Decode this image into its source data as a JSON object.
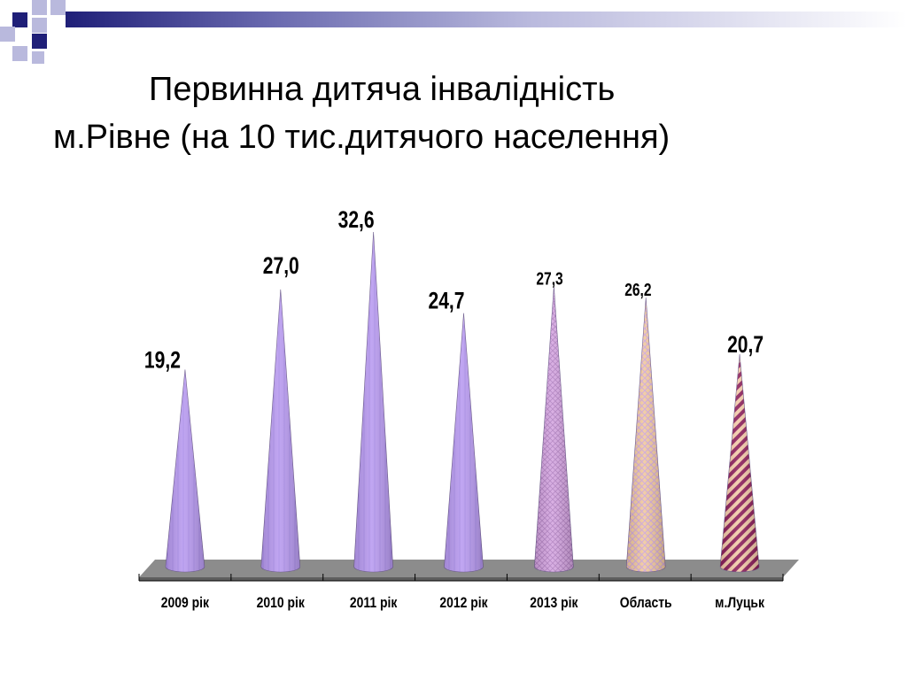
{
  "slide": {
    "title_line1": "Первинна дитяча інвалідність",
    "title_line2": "м.Рівне (на 10 тис.дитячого населення)"
  },
  "colors": {
    "deco_navy": "#1f1f78",
    "deco_lavender": "#b9b9dd",
    "cone_purple": "#b89af0",
    "cone_pink": "#d4a5e0",
    "cone_peach": "#f0c89c",
    "cone_stripe_dark": "#8b1e5a",
    "floor": "#8c8c8c"
  },
  "chart_data": {
    "type": "bar",
    "style": "3d-cone",
    "categories": [
      "2009 рік",
      "2010 рік",
      "2011 рік",
      "2012 рік",
      "2013 рік",
      "Область",
      "м.Луцьк"
    ],
    "values": [
      19.2,
      27.0,
      32.6,
      24.7,
      27.3,
      26.2,
      20.7
    ],
    "data_labels": [
      "19,2",
      "27,0",
      "32,6",
      "24,7",
      "27,3",
      "26,2",
      "20,7"
    ],
    "fills": [
      "purple",
      "purple",
      "purple",
      "purple",
      "pink-crosshatch",
      "peach-crosshatch",
      "pink-stripe"
    ],
    "title": "",
    "xlabel": "",
    "ylabel": "",
    "grid": false,
    "legend": "none"
  }
}
